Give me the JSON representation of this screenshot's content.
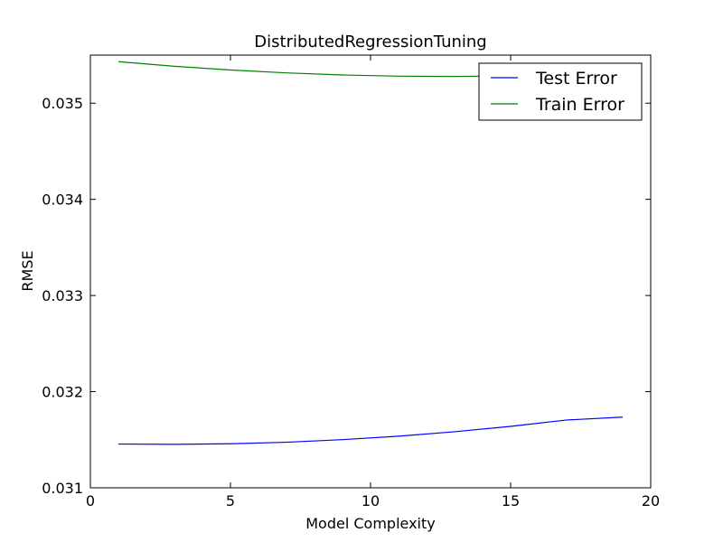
{
  "chart_data": {
    "type": "line",
    "title": "DistributedRegressionTuning",
    "xlabel": "Model Complexity",
    "ylabel": "RMSE",
    "xlim": [
      0,
      20
    ],
    "ylim": [
      0.031,
      0.0355
    ],
    "xticks": [
      0,
      5,
      10,
      15,
      20
    ],
    "xtick_labels": [
      "0",
      "5",
      "10",
      "15",
      "20"
    ],
    "yticks": [
      0.031,
      0.032,
      0.033,
      0.034,
      0.035
    ],
    "ytick_labels": [
      "0.031",
      "0.032",
      "0.033",
      "0.034",
      "0.035"
    ],
    "grid": false,
    "legend": "top-right",
    "x": [
      1,
      3,
      5,
      7,
      9,
      11,
      13,
      15,
      17,
      19
    ],
    "series": [
      {
        "name": "Test Error",
        "color": "#0000ff",
        "values": [
          0.031455,
          0.031452,
          0.031458,
          0.031474,
          0.031501,
          0.031537,
          0.031583,
          0.031639,
          0.031705,
          0.031735
        ]
      },
      {
        "name": "Train Error",
        "color": "#008000",
        "values": [
          0.035432,
          0.035384,
          0.035345,
          0.035315,
          0.035293,
          0.035281,
          0.035278,
          0.035284,
          0.035299,
          0.035322
        ]
      }
    ]
  }
}
